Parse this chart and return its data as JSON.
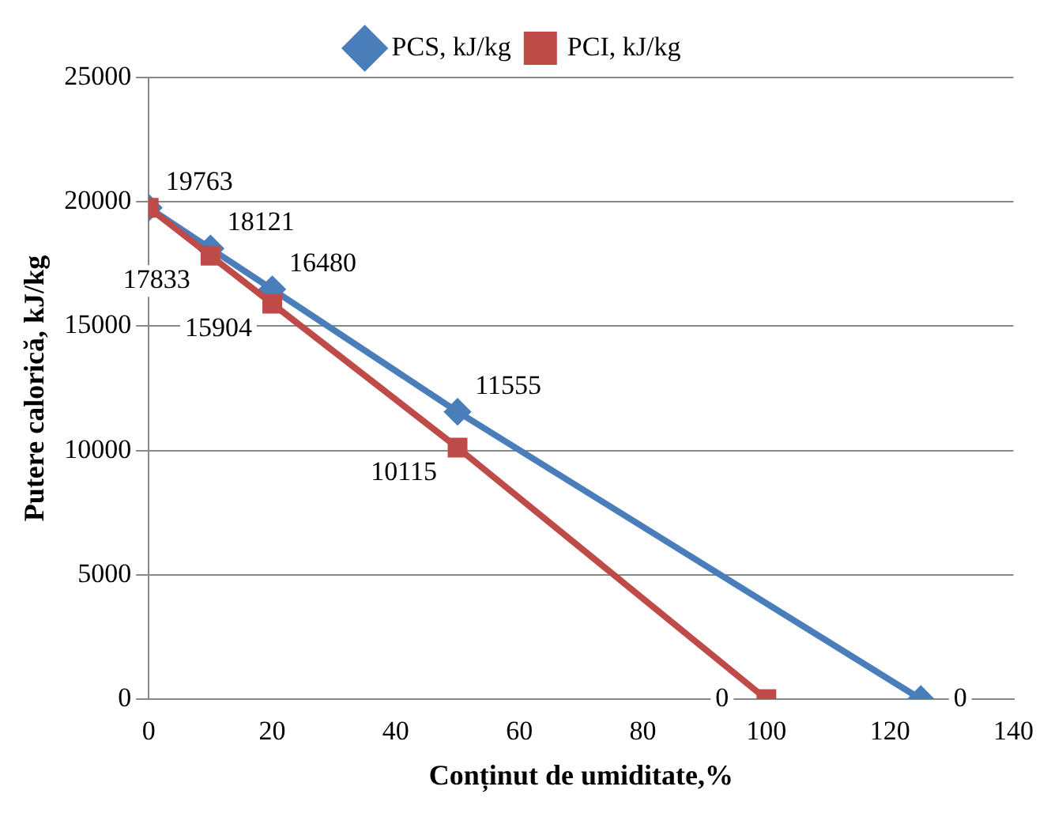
{
  "chart_data": {
    "type": "line",
    "xlabel": "Conținut de umiditate,%",
    "ylabel": "Putere calorică, kJ/kg",
    "xlim": [
      0,
      140
    ],
    "xticks": [
      0,
      20,
      40,
      60,
      80,
      100,
      120,
      140
    ],
    "ylim": [
      0,
      25000
    ],
    "yticks": [
      0,
      5000,
      10000,
      15000,
      20000,
      25000
    ],
    "grid": "y",
    "legend": "top",
    "line_style": "solid",
    "series": [
      {
        "name": "PCS, kJ/kg",
        "color": "#4a7ebb",
        "marker": "diamond",
        "x": [
          0,
          10,
          20,
          50,
          125
        ],
        "values": [
          19763,
          18121,
          16480,
          11555,
          0
        ],
        "value_labels": [
          "19763",
          "18121",
          "16480",
          "11555",
          "0"
        ]
      },
      {
        "name": "PCI, kJ/kg",
        "color": "#be4b48",
        "marker": "square",
        "x": [
          0,
          10,
          20,
          50,
          100
        ],
        "values": [
          19763,
          17833,
          15904,
          10115,
          0
        ],
        "value_labels": [
          null,
          "17833",
          "15904",
          "10115",
          "0"
        ]
      }
    ]
  }
}
